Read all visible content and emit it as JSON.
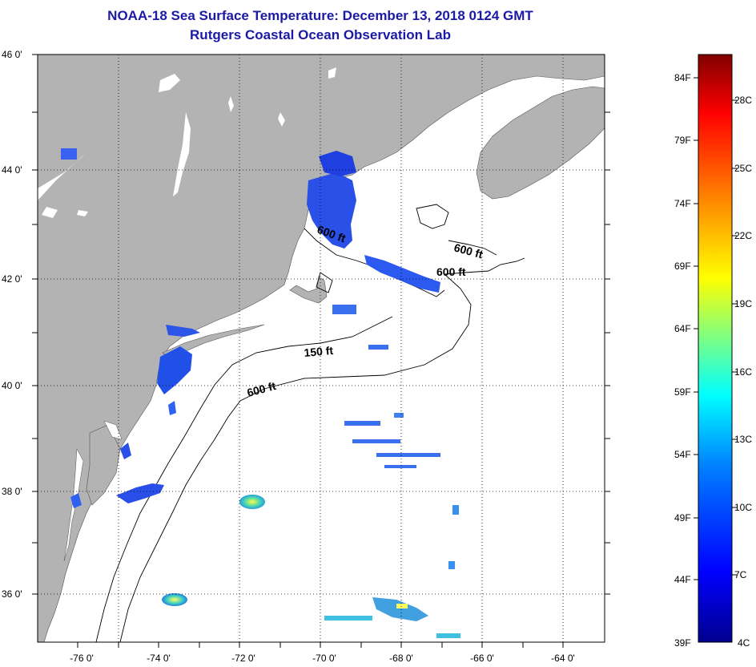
{
  "title": "NOAA-18 Sea Surface Temperature:  December 13, 2018 0124 GMT",
  "subtitle": "Rutgers Coastal Ocean Observation Lab",
  "map": {
    "lon_range": [
      -77,
      -63
    ],
    "lat_range": [
      35,
      46
    ],
    "lon_ticks": [
      "-76 0'",
      "-74 0'",
      "-72 0'",
      "-70 0'",
      "-68 0'",
      "-66 0'",
      "-64 0'"
    ],
    "lat_ticks": [
      "46 0'",
      "44 0'",
      "42 0'",
      "40 0'",
      "38 0'",
      "36 0'"
    ],
    "grid": "dotted",
    "land_color": "#b3b3b3",
    "sea_color": "#ffffff",
    "depth_labels": [
      "600 ft",
      "600 ft",
      "600 ft",
      "150 ft",
      "600 ft"
    ]
  },
  "colorbar": {
    "fahrenheit_labels": [
      "84F",
      "79F",
      "74F",
      "69F",
      "64F",
      "59F",
      "54F",
      "49F",
      "44F",
      "39F"
    ],
    "celsius_labels": [
      "28C",
      "25C",
      "22C",
      "19C",
      "16C",
      "13C",
      "10C",
      "7C",
      "4C"
    ],
    "colors": [
      "#00008f",
      "#0000ff",
      "#0080ff",
      "#00ffff",
      "#80ff80",
      "#ffff00",
      "#ff8000",
      "#ff0000",
      "#800000"
    ]
  }
}
